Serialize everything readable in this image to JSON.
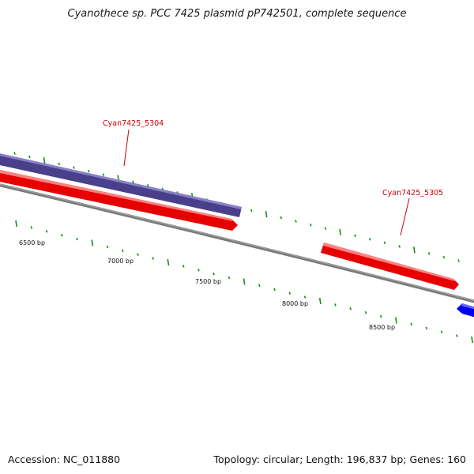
{
  "title": "Cyanothece sp. PCC 7425 plasmid pP742501, complete sequence",
  "footer": {
    "accession": "Accession: NC_011880",
    "summary": "Topology: circular; Length: 196,837 bp; Genes: 160"
  },
  "colors": {
    "backbone": "#7a7a7a",
    "tick": "#1a8a1a",
    "forward_gene": "#e60000",
    "reverse_gene": "#4a3f8a",
    "other_gene": "#0000ee",
    "gene_label": "#cc0000"
  },
  "scale_labels": [
    {
      "label": "6500 bp"
    },
    {
      "label": "7000 bp"
    },
    {
      "label": "7500 bp"
    },
    {
      "label": "8000 bp"
    },
    {
      "label": "8500 bp"
    }
  ],
  "gene_labels": [
    {
      "name": "Cyan7425_5304"
    },
    {
      "name": "Cyan7425_5305"
    }
  ]
}
